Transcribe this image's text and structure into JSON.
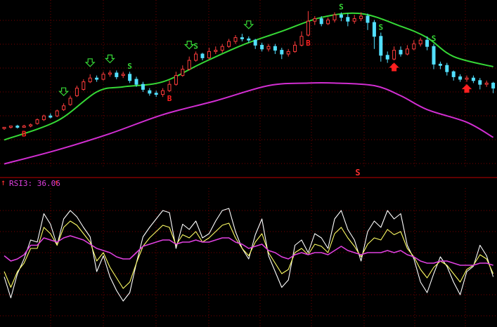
{
  "chart_data": [
    {
      "type": "candlestick",
      "panel": "price",
      "title": "",
      "xlabel": "",
      "ylabel": "",
      "ylim": [
        0,
        100
      ],
      "grid": true,
      "colors": {
        "up": "#ff3c3c",
        "down": "#52e0ff",
        "upper_band": "#36d836",
        "lower_band": "#d22ed2",
        "buy": "#ff2020",
        "sell": "#36d836"
      },
      "candles": [
        [
          0,
          1,
          2,
          0,
          2
        ],
        [
          1,
          2,
          3,
          1,
          3
        ],
        [
          2,
          3,
          2,
          1,
          4
        ],
        [
          3,
          2,
          3,
          2,
          4
        ],
        [
          4,
          3,
          4,
          2,
          5
        ],
        [
          5,
          5,
          8,
          4,
          9
        ],
        [
          6,
          8,
          11,
          7,
          12
        ],
        [
          7,
          11,
          10,
          9,
          13
        ],
        [
          8,
          11,
          15,
          10,
          16
        ],
        [
          9,
          16,
          19,
          15,
          21
        ],
        [
          10,
          20,
          25,
          19,
          27
        ],
        [
          11,
          27,
          33,
          26,
          35
        ],
        [
          12,
          32,
          38,
          31,
          40
        ],
        [
          13,
          38,
          41,
          37,
          44
        ],
        [
          14,
          41,
          40,
          38,
          43
        ],
        [
          15,
          40,
          44,
          39,
          46
        ],
        [
          16,
          44,
          45,
          42,
          47
        ],
        [
          17,
          45,
          42,
          40,
          47
        ],
        [
          18,
          43,
          44,
          41,
          46
        ],
        [
          19,
          44,
          39,
          37,
          46
        ],
        [
          20,
          40,
          36,
          34,
          42
        ],
        [
          21,
          36,
          32,
          30,
          38
        ],
        [
          22,
          31,
          29,
          27,
          33
        ],
        [
          23,
          29,
          28,
          26,
          31
        ],
        [
          24,
          28,
          31,
          26,
          33
        ],
        [
          25,
          31,
          36,
          30,
          39
        ],
        [
          26,
          36,
          43,
          35,
          46
        ],
        [
          27,
          43,
          48,
          42,
          51
        ],
        [
          28,
          48,
          55,
          47,
          58
        ],
        [
          29,
          55,
          60,
          54,
          62
        ],
        [
          30,
          60,
          57,
          55,
          61
        ],
        [
          31,
          57,
          62,
          56,
          65
        ],
        [
          32,
          62,
          63,
          60,
          66
        ],
        [
          33,
          63,
          66,
          61,
          68
        ],
        [
          34,
          66,
          70,
          65,
          72
        ],
        [
          35,
          70,
          73,
          68,
          75
        ],
        [
          36,
          73,
          72,
          70,
          76
        ],
        [
          37,
          72,
          71,
          69,
          74
        ],
        [
          38,
          71,
          67,
          64,
          72
        ],
        [
          39,
          67,
          64,
          62,
          69
        ],
        [
          40,
          64,
          66,
          62,
          68
        ],
        [
          41,
          66,
          63,
          60,
          68
        ],
        [
          42,
          63,
          60,
          56,
          65
        ],
        [
          43,
          60,
          62,
          58,
          64
        ],
        [
          44,
          62,
          67,
          61,
          70
        ],
        [
          45,
          67,
          74,
          66,
          78
        ],
        [
          46,
          75,
          86,
          74,
          94
        ],
        [
          47,
          86,
          88,
          83,
          90
        ],
        [
          48,
          88,
          84,
          82,
          90
        ],
        [
          49,
          84,
          87,
          83,
          89
        ],
        [
          50,
          87,
          91,
          85,
          93
        ],
        [
          51,
          91,
          89,
          86,
          93
        ],
        [
          52,
          89,
          86,
          82,
          92
        ],
        [
          53,
          86,
          88,
          84,
          91
        ],
        [
          54,
          88,
          90,
          86,
          93
        ],
        [
          55,
          90,
          85,
          79,
          92
        ],
        [
          56,
          85,
          74,
          64,
          87
        ],
        [
          57,
          74,
          59,
          54,
          77
        ],
        [
          58,
          59,
          56,
          53,
          62
        ],
        [
          59,
          56,
          63,
          55,
          66
        ],
        [
          60,
          63,
          60,
          58,
          66
        ],
        [
          61,
          60,
          64,
          59,
          67
        ],
        [
          62,
          64,
          68,
          63,
          71
        ],
        [
          63,
          68,
          71,
          66,
          73
        ],
        [
          64,
          71,
          66,
          63,
          74
        ],
        [
          65,
          66,
          52,
          48,
          68
        ],
        [
          66,
          52,
          51,
          48,
          54
        ],
        [
          67,
          51,
          46,
          43,
          53
        ],
        [
          68,
          46,
          42,
          39,
          47
        ],
        [
          69,
          42,
          40,
          38,
          44
        ],
        [
          70,
          40,
          41,
          38,
          43
        ],
        [
          71,
          41,
          39,
          37,
          43
        ],
        [
          72,
          39,
          36,
          32,
          41
        ],
        [
          73,
          36,
          37,
          34,
          39
        ],
        [
          74,
          37,
          33,
          29,
          38
        ]
      ],
      "upper_band": [
        [
          0,
          -8
        ],
        [
          8,
          7
        ],
        [
          14,
          30
        ],
        [
          18,
          34
        ],
        [
          24,
          38
        ],
        [
          30,
          53
        ],
        [
          36,
          67
        ],
        [
          42,
          78
        ],
        [
          48,
          89
        ],
        [
          54,
          92
        ],
        [
          60,
          82
        ],
        [
          64,
          73
        ],
        [
          68,
          58
        ],
        [
          74,
          50
        ]
      ],
      "lower_band": [
        [
          0,
          -27
        ],
        [
          8,
          -16
        ],
        [
          16,
          -3
        ],
        [
          24,
          12
        ],
        [
          32,
          23
        ],
        [
          40,
          35
        ],
        [
          46,
          37
        ],
        [
          50,
          37
        ],
        [
          56,
          35
        ],
        [
          60,
          27
        ],
        [
          64,
          16
        ],
        [
          70,
          6
        ],
        [
          74,
          -6
        ]
      ],
      "signals": [
        {
          "x": 3,
          "label": "B",
          "kind": "buy"
        },
        {
          "x": 9,
          "label": "",
          "kind": "sell-arrow"
        },
        {
          "x": 13,
          "label": "",
          "kind": "sell-arrow"
        },
        {
          "x": 16,
          "label": "",
          "kind": "sell-arrow"
        },
        {
          "x": 19,
          "label": "S",
          "kind": "sell"
        },
        {
          "x": 25,
          "label": "B",
          "kind": "buy"
        },
        {
          "x": 28,
          "label": "",
          "kind": "sell-arrow"
        },
        {
          "x": 29,
          "label": "S",
          "kind": "sell"
        },
        {
          "x": 37,
          "label": "",
          "kind": "sell-arrow"
        },
        {
          "x": 46,
          "label": "B",
          "kind": "buy"
        },
        {
          "x": 51,
          "label": "S",
          "kind": "sell"
        },
        {
          "x": 57,
          "label": "S",
          "kind": "sell"
        },
        {
          "x": 59,
          "label": "B",
          "kind": "buy"
        },
        {
          "x": 59,
          "label": "",
          "kind": "buy-arrow"
        },
        {
          "x": 65,
          "label": "S",
          "kind": "sell"
        },
        {
          "x": 70,
          "label": "",
          "kind": "buy-arrow"
        }
      ],
      "divider_label": "S"
    },
    {
      "type": "line",
      "panel": "rsi",
      "title": "RSI3: 36.06",
      "xlabel": "",
      "ylabel": "",
      "ylim": [
        0,
        100
      ],
      "grid": true,
      "series": [
        {
          "color": "#ffffff",
          "values": [
            25,
            5,
            28,
            42,
            60,
            58,
            85,
            75,
            55,
            80,
            88,
            82,
            72,
            63,
            30,
            45,
            25,
            12,
            2,
            10,
            38,
            63,
            72,
            80,
            88,
            86,
            52,
            75,
            70,
            78,
            62,
            66,
            78,
            88,
            90,
            68,
            52,
            42,
            65,
            80,
            45,
            30,
            15,
            22,
            55,
            60,
            48,
            66,
            62,
            52,
            80,
            88,
            70,
            60,
            40,
            68,
            78,
            72,
            88,
            80,
            85,
            55,
            42,
            20,
            10,
            28,
            44,
            35,
            20,
            8,
            30,
            35,
            55,
            45,
            25
          ]
        },
        {
          "color": "#ffff66",
          "values": [
            30,
            15,
            30,
            38,
            52,
            52,
            72,
            66,
            55,
            72,
            78,
            74,
            66,
            58,
            40,
            48,
            34,
            24,
            14,
            20,
            38,
            54,
            62,
            68,
            74,
            72,
            55,
            65,
            62,
            68,
            58,
            62,
            68,
            74,
            76,
            62,
            52,
            45,
            58,
            66,
            48,
            38,
            28,
            32,
            48,
            52,
            46,
            56,
            54,
            48,
            66,
            72,
            62,
            54,
            44,
            56,
            62,
            60,
            70,
            65,
            68,
            52,
            44,
            32,
            24,
            34,
            40,
            36,
            28,
            20,
            32,
            36,
            46,
            42,
            28
          ]
        },
        {
          "color": "#e040e0",
          "values": [
            45,
            40,
            42,
            46,
            55,
            55,
            62,
            60,
            58,
            62,
            64,
            62,
            60,
            56,
            52,
            50,
            48,
            44,
            42,
            42,
            48,
            54,
            56,
            58,
            60,
            60,
            56,
            58,
            58,
            60,
            58,
            58,
            60,
            62,
            62,
            58,
            56,
            52,
            54,
            56,
            50,
            48,
            44,
            42,
            46,
            48,
            46,
            48,
            48,
            46,
            50,
            54,
            50,
            48,
            46,
            48,
            48,
            48,
            50,
            48,
            50,
            46,
            44,
            40,
            38,
            38,
            40,
            40,
            38,
            36,
            36,
            36,
            38,
            38,
            36
          ]
        }
      ]
    }
  ]
}
